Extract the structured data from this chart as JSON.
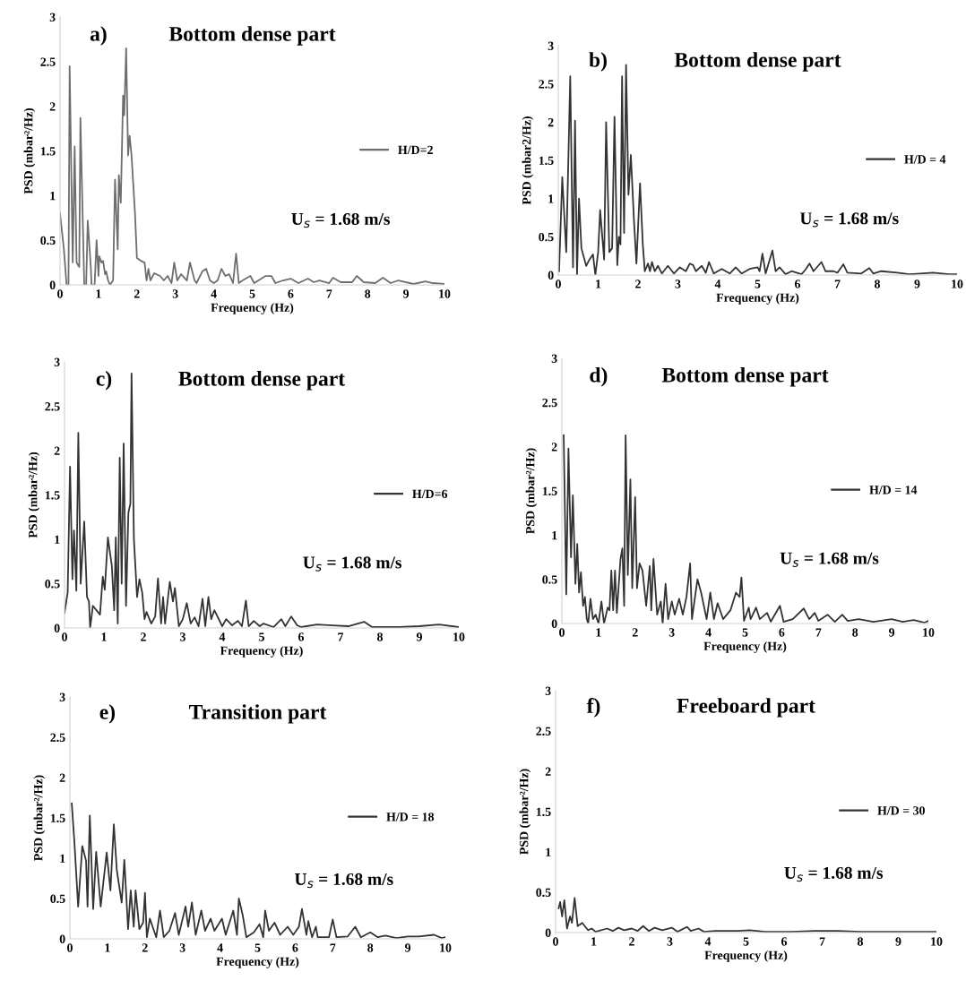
{
  "chart_data": [
    {
      "type": "line",
      "title": "Bottom dense part",
      "xlabel": "Frequency (Hz)",
      "ylabel": "PSD (mbar²/Hz)",
      "annotations": [
        "a)",
        "U$_{s}$ = 1.68 m/s"
      ],
      "xlim": [
        0,
        10
      ],
      "ylim": [
        0,
        3
      ],
      "xticks": [
        0,
        1,
        2,
        3,
        4,
        5,
        6,
        7,
        8,
        9,
        10
      ],
      "yticks": [
        0,
        0.5,
        1,
        1.5,
        2,
        2.5,
        3
      ],
      "grid": false,
      "legend": "right",
      "series": [
        {
          "name": "H/D=2",
          "color": "#6e6e6e",
          "x": [
            0,
            0.1,
            0.17,
            0.22,
            0.25,
            0.33,
            0.38,
            0.43,
            0.5,
            0.53,
            0.63,
            0.68,
            0.72,
            0.8,
            0.82,
            0.9,
            0.95,
            1.0,
            1.02,
            1.08,
            1.12,
            1.17,
            1.2,
            1.25,
            1.3,
            1.38,
            1.43,
            1.5,
            1.53,
            1.58,
            1.64,
            1.67,
            1.72,
            1.77,
            1.81,
            1.86,
            1.95,
            2.0,
            2.1,
            2.2,
            2.25,
            2.3,
            2.35,
            2.45,
            2.6,
            2.7,
            2.8,
            2.9,
            2.97,
            3.05,
            3.15,
            3.3,
            3.38,
            3.5,
            3.55,
            3.7,
            3.8,
            3.9,
            4.0,
            4.1,
            4.2,
            4.3,
            4.4,
            4.5,
            4.58,
            4.65,
            4.75,
            4.95,
            5.05,
            5.35,
            5.5,
            5.6,
            5.8,
            6.0,
            6.2,
            6.45,
            6.6,
            6.75,
            7.0,
            7.1,
            7.3,
            7.6,
            7.72,
            7.9,
            8.2,
            8.4,
            8.6,
            8.8,
            9.2,
            9.5,
            9.7,
            10.0
          ],
          "values": [
            0.8,
            0.4,
            0,
            0,
            2.45,
            0.25,
            1.55,
            0.25,
            0.2,
            1.87,
            0,
            0,
            0.72,
            0.2,
            0,
            0,
            0.5,
            0.1,
            0.32,
            0.25,
            0.27,
            0.12,
            0.15,
            0.05,
            0,
            0.05,
            1.18,
            0.4,
            1.23,
            0.92,
            2.12,
            1.9,
            2.65,
            1.45,
            1.67,
            1.45,
            0.8,
            0.3,
            0.27,
            0.25,
            0.05,
            0.18,
            0.05,
            0.13,
            0.1,
            0.05,
            0.1,
            0.02,
            0.25,
            0.05,
            0.12,
            0.05,
            0.25,
            0.05,
            0.02,
            0.15,
            0.18,
            0.05,
            0.02,
            0.05,
            0.18,
            0.1,
            0.12,
            0.02,
            0.35,
            0.02,
            0.05,
            0.1,
            0.02,
            0.1,
            0.1,
            0.02,
            0.05,
            0.07,
            0.02,
            0.07,
            0.03,
            0.05,
            0.02,
            0.08,
            0.03,
            0.03,
            0.1,
            0.03,
            0.02,
            0.08,
            0.02,
            0.05,
            0.01,
            0.04,
            0.02,
            0.01
          ]
        }
      ]
    },
    {
      "type": "line",
      "title": "Bottom dense part",
      "xlabel": "Frequency (Hz)",
      "ylabel": "PSD (mbar2/Hz)",
      "annotations": [
        "b)",
        "U$_{s}$ = 1.68 m/s"
      ],
      "xlim": [
        0,
        10
      ],
      "ylim": [
        0,
        3
      ],
      "xticks": [
        0,
        1,
        2,
        3,
        4,
        5,
        6,
        7,
        8,
        9,
        10
      ],
      "yticks": [
        0,
        0.5,
        1,
        1.5,
        2,
        2.5,
        3
      ],
      "grid": false,
      "legend": "right",
      "series": [
        {
          "name": "H/D = 4",
          "color": "#333333",
          "x": [
            0.02,
            0.1,
            0.2,
            0.3,
            0.37,
            0.42,
            0.47,
            0.52,
            0.58,
            0.7,
            0.78,
            0.87,
            0.93,
            1.0,
            1.05,
            1.15,
            1.2,
            1.28,
            1.35,
            1.41,
            1.48,
            1.52,
            1.56,
            1.6,
            1.65,
            1.7,
            1.76,
            1.82,
            1.9,
            1.96,
            2.05,
            2.12,
            2.17,
            2.25,
            2.3,
            2.35,
            2.42,
            2.5,
            2.6,
            2.75,
            2.9,
            3.05,
            3.2,
            3.3,
            3.38,
            3.45,
            3.6,
            3.7,
            3.78,
            3.9,
            4.1,
            4.3,
            4.45,
            4.6,
            4.8,
            5.0,
            5.05,
            5.12,
            5.2,
            5.37,
            5.45,
            5.55,
            5.7,
            5.85,
            6.1,
            6.2,
            6.3,
            6.4,
            6.6,
            6.7,
            6.9,
            7.0,
            7.15,
            7.25,
            7.6,
            7.8,
            7.9,
            8.1,
            8.5,
            8.8,
            9.4,
            9.8,
            10.0
          ],
          "values": [
            0.05,
            1.28,
            0.3,
            2.6,
            0.1,
            2.02,
            0,
            1.0,
            0.35,
            0.12,
            0.2,
            0.27,
            0,
            0.3,
            0.85,
            0.2,
            2.0,
            0.3,
            0.35,
            2.07,
            0.13,
            0.5,
            0.4,
            2.6,
            0.55,
            2.75,
            1.05,
            1.57,
            0.7,
            0.15,
            1.2,
            0.4,
            0.05,
            0.15,
            0.05,
            0.17,
            0.05,
            0.12,
            0.02,
            0.12,
            0.02,
            0.1,
            0.05,
            0.15,
            0.13,
            0.05,
            0.12,
            0.03,
            0.17,
            0.02,
            0.08,
            0.02,
            0.1,
            0.02,
            0.08,
            0.1,
            0.05,
            0.28,
            0.02,
            0.32,
            0.05,
            0.1,
            0.01,
            0.05,
            0.01,
            0.07,
            0.15,
            0.05,
            0.17,
            0.05,
            0.05,
            0.03,
            0.14,
            0.03,
            0.02,
            0.09,
            0.02,
            0.05,
            0.03,
            0.01,
            0.03,
            0.01,
            0.01
          ]
        }
      ]
    },
    {
      "type": "line",
      "title": "Bottom dense part",
      "xlabel": "Frequency (Hz)",
      "ylabel": "PSD (mbar²/Hz)",
      "annotations": [
        "c)",
        "U$_{s}$ = 1.68 m/s"
      ],
      "xlim": [
        0,
        10
      ],
      "ylim": [
        0,
        3
      ],
      "xticks": [
        0,
        1,
        2,
        3,
        4,
        5,
        6,
        7,
        8,
        9,
        10
      ],
      "yticks": [
        0,
        0.5,
        1,
        1.5,
        2,
        2.5,
        3
      ],
      "grid": false,
      "legend": "right",
      "series": [
        {
          "name": "H/D=6",
          "color": "#333333",
          "x": [
            0.0,
            0.08,
            0.14,
            0.2,
            0.24,
            0.3,
            0.35,
            0.41,
            0.5,
            0.57,
            0.62,
            0.65,
            0.72,
            0.9,
            0.97,
            1.02,
            1.1,
            1.2,
            1.26,
            1.3,
            1.35,
            1.4,
            1.45,
            1.5,
            1.56,
            1.62,
            1.67,
            1.7,
            1.76,
            1.84,
            1.9,
            1.97,
            2.03,
            2.08,
            2.2,
            2.3,
            2.37,
            2.45,
            2.5,
            2.55,
            2.67,
            2.75,
            2.8,
            2.9,
            3.0,
            3.1,
            3.2,
            3.3,
            3.4,
            3.5,
            3.57,
            3.65,
            3.72,
            3.8,
            4.0,
            4.1,
            4.25,
            4.4,
            4.5,
            4.6,
            4.67,
            4.8,
            4.95,
            5.05,
            5.3,
            5.5,
            5.6,
            5.75,
            5.9,
            6.0,
            6.4,
            6.8,
            7.2,
            7.6,
            7.8,
            8.5,
            9.0,
            9.5,
            10.0
          ],
          "values": [
            0.17,
            0.4,
            1.82,
            0.55,
            1.1,
            0.42,
            2.2,
            0.5,
            1.2,
            0.35,
            0.3,
            0,
            0.25,
            0.15,
            0.58,
            0.43,
            1.02,
            0.7,
            0.2,
            1.02,
            0.05,
            1.92,
            0.5,
            2.08,
            0.25,
            1.3,
            1.4,
            2.87,
            1.0,
            0.35,
            0.55,
            0.4,
            0.1,
            0.18,
            0.05,
            0.13,
            0.56,
            0.05,
            0.35,
            0.05,
            0.52,
            0.3,
            0.45,
            0.02,
            0.1,
            0.28,
            0.05,
            0.12,
            0.02,
            0.33,
            0.02,
            0.35,
            0.1,
            0.2,
            0.02,
            0.1,
            0.03,
            0.08,
            0.02,
            0.31,
            0.02,
            0.08,
            0.02,
            0.05,
            0.01,
            0.1,
            0.02,
            0.13,
            0.03,
            0.01,
            0.04,
            0.03,
            0.02,
            0.07,
            0.01,
            0.01,
            0.02,
            0.04,
            0.01
          ]
        }
      ]
    },
    {
      "type": "line",
      "title": "Bottom dense part",
      "xlabel": "Frequency (Hz)",
      "ylabel": "PSD (mbar²/Hz)",
      "annotations": [
        "d)",
        "U$_{s}$ = 1.68 m/s"
      ],
      "xlim": [
        0,
        10
      ],
      "ylim": [
        0,
        3
      ],
      "xticks": [
        0,
        1,
        2,
        3,
        4,
        5,
        6,
        7,
        8,
        9,
        10
      ],
      "yticks": [
        0,
        0.5,
        1,
        1.5,
        2,
        2.5,
        3
      ],
      "grid": false,
      "legend": "right",
      "series": [
        {
          "name": "H/D = 14",
          "color": "#333333",
          "x": [
            0.05,
            0.12,
            0.18,
            0.25,
            0.3,
            0.37,
            0.42,
            0.47,
            0.52,
            0.58,
            0.63,
            0.68,
            0.72,
            0.78,
            0.85,
            0.92,
            1.0,
            1.08,
            1.15,
            1.25,
            1.3,
            1.35,
            1.4,
            1.45,
            1.5,
            1.6,
            1.65,
            1.7,
            1.74,
            1.8,
            1.87,
            1.92,
            2.0,
            2.05,
            2.12,
            2.2,
            2.3,
            2.4,
            2.44,
            2.5,
            2.6,
            2.7,
            2.75,
            2.83,
            2.9,
            3.0,
            3.08,
            3.2,
            3.3,
            3.4,
            3.5,
            3.55,
            3.7,
            3.8,
            3.95,
            4.05,
            4.15,
            4.25,
            4.4,
            4.6,
            4.75,
            4.85,
            4.9,
            4.97,
            5.1,
            5.15,
            5.3,
            5.4,
            5.6,
            5.7,
            5.95,
            6.05,
            6.3,
            6.6,
            6.75,
            6.9,
            7.0,
            7.25,
            7.45,
            7.65,
            7.8,
            8.1,
            8.5,
            9.0,
            9.3,
            9.6,
            9.9,
            10.0
          ],
          "values": [
            2.13,
            0.33,
            1.98,
            0.75,
            1.45,
            0.45,
            0.9,
            0.35,
            0.58,
            0.2,
            0.3,
            0.05,
            0,
            0.28,
            0.05,
            0.1,
            0,
            0.25,
            0,
            0.18,
            0.15,
            0.6,
            0.15,
            0.6,
            0.12,
            0.73,
            0.85,
            0.2,
            2.13,
            0.55,
            1.63,
            0.4,
            1.43,
            0.4,
            0.68,
            0.6,
            0.2,
            0.65,
            0.15,
            0.73,
            0.1,
            0.25,
            0,
            0.45,
            0.05,
            0.25,
            0.1,
            0.28,
            0.1,
            0.3,
            0.68,
            0.05,
            0.5,
            0.35,
            0.05,
            0.35,
            0.05,
            0.23,
            0.05,
            0.15,
            0.35,
            0.3,
            0.52,
            0.03,
            0.18,
            0.05,
            0.18,
            0.05,
            0.12,
            0.02,
            0.2,
            0.02,
            0.05,
            0.17,
            0.05,
            0.12,
            0.03,
            0.1,
            0.02,
            0.1,
            0.03,
            0.05,
            0.02,
            0.05,
            0.02,
            0.04,
            0.01,
            0.03
          ]
        }
      ]
    },
    {
      "type": "line",
      "title": "Transition part",
      "xlabel": "Frequency (Hz)",
      "ylabel": "PSD (mbar²/Hz)",
      "annotations": [
        "e)",
        "U$_{s}$ = 1.68 m/s"
      ],
      "xlim": [
        0,
        10
      ],
      "ylim": [
        0,
        3
      ],
      "xticks": [
        0,
        1,
        2,
        3,
        4,
        5,
        6,
        7,
        8,
        9,
        10
      ],
      "yticks": [
        0,
        0.5,
        1,
        1.5,
        2,
        2.5,
        3
      ],
      "grid": false,
      "legend": "right",
      "series": [
        {
          "name": "H/D = 18",
          "color": "#333333",
          "x": [
            0.05,
            0.12,
            0.22,
            0.33,
            0.43,
            0.47,
            0.53,
            0.62,
            0.7,
            0.82,
            0.98,
            1.08,
            1.17,
            1.25,
            1.38,
            1.45,
            1.55,
            1.62,
            1.7,
            1.75,
            1.85,
            1.95,
            2.0,
            2.05,
            2.13,
            2.3,
            2.4,
            2.5,
            2.65,
            2.8,
            2.9,
            3.08,
            3.15,
            3.25,
            3.35,
            3.5,
            3.6,
            3.75,
            3.85,
            4.05,
            4.15,
            4.35,
            4.45,
            4.5,
            4.6,
            4.7,
            4.9,
            5.05,
            5.15,
            5.2,
            5.3,
            5.45,
            5.6,
            5.8,
            5.95,
            6.1,
            6.18,
            6.3,
            6.35,
            6.45,
            6.55,
            6.6,
            6.9,
            7.0,
            7.1,
            7.4,
            7.6,
            7.75,
            8.0,
            8.2,
            8.4,
            8.7,
            9.0,
            9.3,
            9.7,
            9.9,
            10.0
          ],
          "values": [
            1.68,
            1.2,
            0.4,
            1.15,
            0.97,
            0.4,
            1.53,
            0.37,
            1.08,
            0.4,
            1.07,
            0.6,
            1.42,
            0.85,
            0.45,
            0.98,
            0.12,
            0.6,
            0.15,
            0.6,
            0.12,
            0.2,
            0.57,
            0.02,
            0.25,
            0.02,
            0.35,
            0.02,
            0.1,
            0.32,
            0.05,
            0.4,
            0.15,
            0.45,
            0.05,
            0.35,
            0.1,
            0.25,
            0.1,
            0.25,
            0.05,
            0.35,
            0.05,
            0.5,
            0.3,
            0.02,
            0.08,
            0.18,
            0.02,
            0.35,
            0.1,
            0.2,
            0.05,
            0.15,
            0.05,
            0.15,
            0.37,
            0.05,
            0.22,
            0.02,
            0.15,
            0.02,
            0.02,
            0.24,
            0.02,
            0.03,
            0.15,
            0.02,
            0.08,
            0.02,
            0.04,
            0.01,
            0.03,
            0.03,
            0.05,
            0.01,
            0.02
          ]
        }
      ]
    },
    {
      "type": "line",
      "title": "Freeboard part",
      "xlabel": "Frequency (Hz)",
      "ylabel": "PSD (mbar²/Hz)",
      "annotations": [
        "f)",
        "U$_{s}$ = 1.68 m/s"
      ],
      "xlim": [
        0,
        10
      ],
      "ylim": [
        0,
        3
      ],
      "xticks": [
        0,
        1,
        2,
        3,
        4,
        5,
        6,
        7,
        8,
        9,
        10
      ],
      "yticks": [
        0,
        0.5,
        1,
        1.5,
        2,
        2.5,
        3
      ],
      "grid": false,
      "legend": "right",
      "series": [
        {
          "name": "H/D = 30",
          "color": "#333333",
          "x": [
            0.08,
            0.12,
            0.17,
            0.23,
            0.3,
            0.38,
            0.43,
            0.5,
            0.58,
            0.7,
            0.85,
            0.95,
            1.05,
            1.35,
            1.5,
            1.65,
            1.8,
            2.0,
            2.15,
            2.3,
            2.45,
            2.6,
            2.8,
            3.05,
            3.2,
            3.45,
            3.55,
            3.75,
            3.9,
            4.2,
            4.8,
            5.1,
            5.5,
            6.2,
            6.8,
            7.4,
            8.0,
            9.0,
            10.0
          ],
          "values": [
            0.3,
            0.38,
            0.2,
            0.4,
            0.05,
            0.2,
            0.12,
            0.43,
            0.08,
            0.12,
            0.03,
            0.05,
            0.01,
            0.05,
            0.02,
            0.06,
            0.03,
            0.05,
            0.02,
            0.08,
            0.02,
            0.06,
            0.03,
            0.06,
            0.01,
            0.07,
            0.02,
            0.05,
            0.01,
            0.02,
            0.02,
            0.03,
            0.01,
            0.01,
            0.02,
            0.02,
            0.01,
            0.01,
            0.01
          ]
        }
      ]
    }
  ]
}
